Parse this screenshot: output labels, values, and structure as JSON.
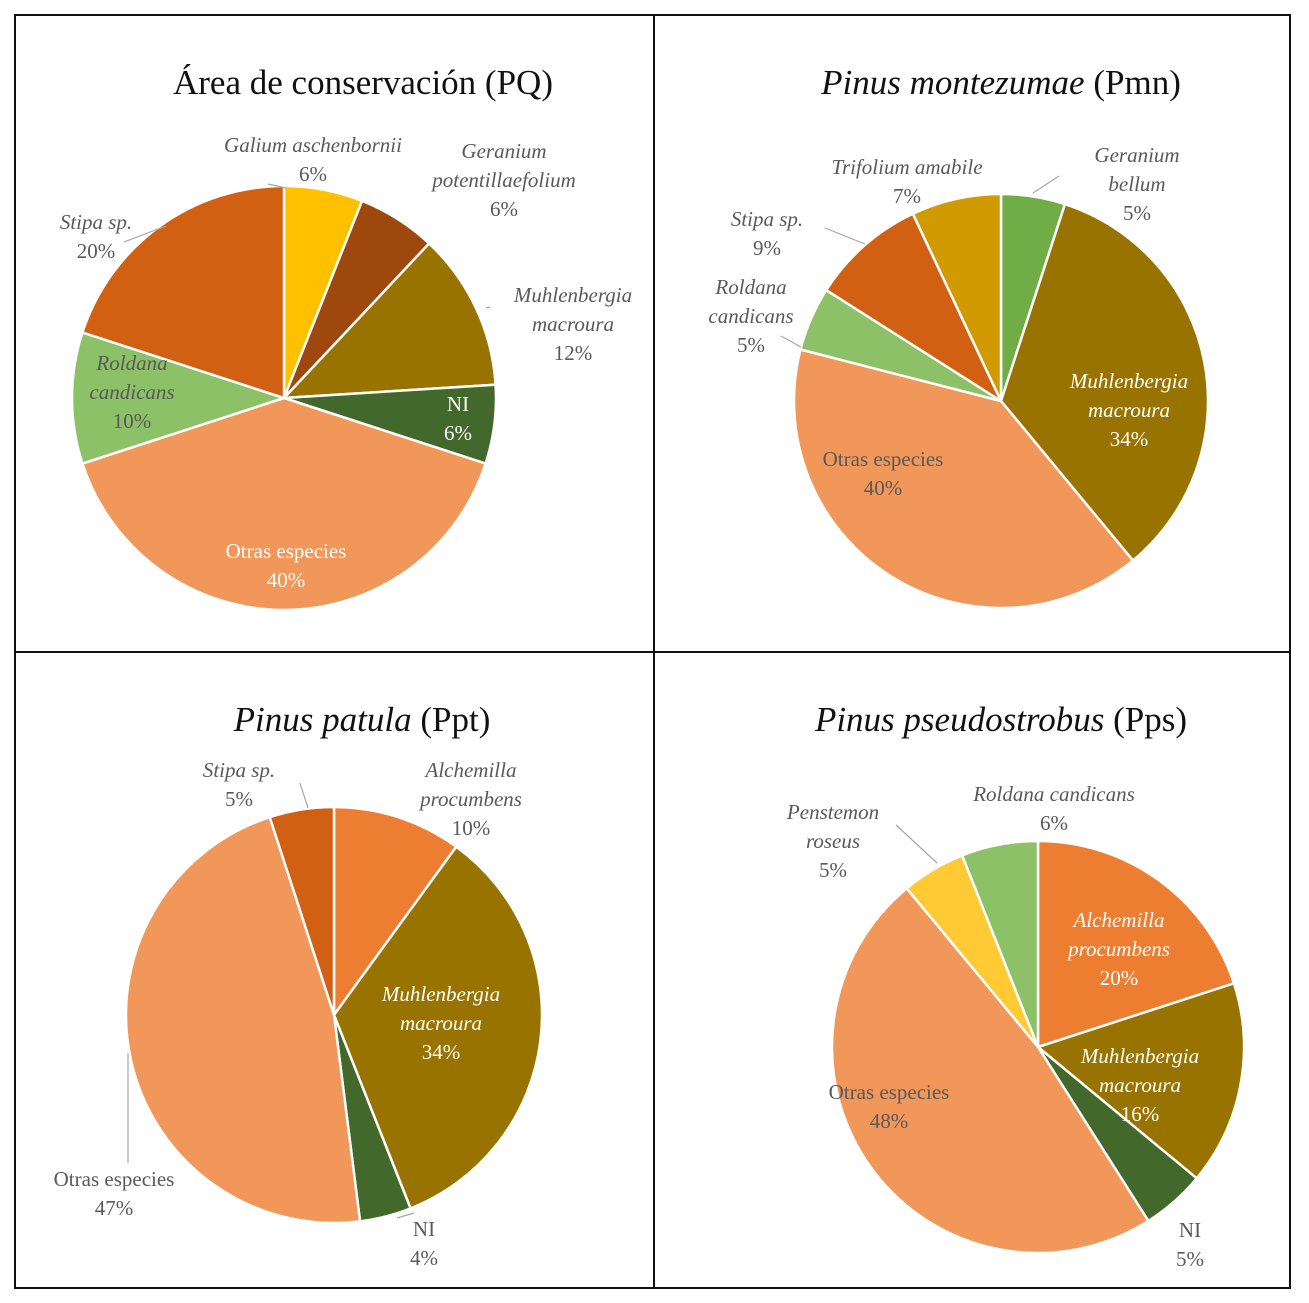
{
  "chart_data": [
    {
      "type": "pie",
      "title_italic": "",
      "title_normal": "Área de conservación (PQ)",
      "slices": [
        {
          "label": "Galium aschenbornii",
          "value": 6,
          "pct": "6%",
          "color": "#FFC000"
        },
        {
          "label": "Geranium potentillaefolium",
          "value": 6,
          "pct": "6%",
          "color": "#9E480E"
        },
        {
          "label": "Muhlenbergia macroura",
          "value": 12,
          "pct": "12%",
          "color": "#997300"
        },
        {
          "label": "NI",
          "value": 6,
          "pct": "6%",
          "color": "#43682B"
        },
        {
          "label": "Otras especies",
          "value": 40,
          "pct": "40%",
          "color": "#F1975A"
        },
        {
          "label": "Roldana candicans",
          "value": 10,
          "pct": "10%",
          "color": "#8CC168"
        },
        {
          "label": "Stipa sp.",
          "value": 20,
          "pct": "20%",
          "color": "#D26012"
        }
      ]
    },
    {
      "type": "pie",
      "title_italic": "Pinus montezumae",
      "title_normal": " (Pmn)",
      "slices": [
        {
          "label": "Geranium bellum",
          "value": 5,
          "pct": "5%",
          "color": "#70AD47"
        },
        {
          "label": "Muhlenbergia macroura",
          "value": 34,
          "pct": "34%",
          "color": "#997300"
        },
        {
          "label": "Otras especies",
          "value": 40,
          "pct": "40%",
          "color": "#F1975A"
        },
        {
          "label": "Roldana candicans",
          "value": 5,
          "pct": "5%",
          "color": "#8CC168"
        },
        {
          "label": "Stipa sp.",
          "value": 9,
          "pct": "9%",
          "color": "#D26012"
        },
        {
          "label": "Trifolium amabile",
          "value": 7,
          "pct": "7%",
          "color": "#D09A00"
        }
      ]
    },
    {
      "type": "pie",
      "title_italic": "Pinus patula",
      "title_normal": " (Ppt)",
      "slices": [
        {
          "label": "Alchemilla procumbens",
          "value": 10,
          "pct": "10%",
          "color": "#ED7D31"
        },
        {
          "label": "Muhlenbergia macroura",
          "value": 34,
          "pct": "34%",
          "color": "#997300"
        },
        {
          "label": "NI",
          "value": 4,
          "pct": "4%",
          "color": "#43682B"
        },
        {
          "label": "Otras especies",
          "value": 47,
          "pct": "47%",
          "color": "#F1975A"
        },
        {
          "label": "Stipa sp.",
          "value": 5,
          "pct": "5%",
          "color": "#D26012"
        }
      ]
    },
    {
      "type": "pie",
      "title_italic": "Pinus pseudostrobus",
      "title_normal": " (Pps)",
      "slices": [
        {
          "label": "Alchemilla procumbens",
          "value": 20,
          "pct": "20%",
          "color": "#ED7D31"
        },
        {
          "label": "Muhlenbergia macroura",
          "value": 16,
          "pct": "16%",
          "color": "#997300"
        },
        {
          "label": "NI",
          "value": 5,
          "pct": "5%",
          "color": "#43682B"
        },
        {
          "label": "Otras especies",
          "value": 48,
          "pct": "48%",
          "color": "#F1975A"
        },
        {
          "label": "Penstemon roseus",
          "value": 5,
          "pct": "5%",
          "color": "#FFCA33"
        },
        {
          "label": "Roldana candicans",
          "value": 6,
          "pct": "6%",
          "color": "#8CC168"
        }
      ]
    }
  ]
}
